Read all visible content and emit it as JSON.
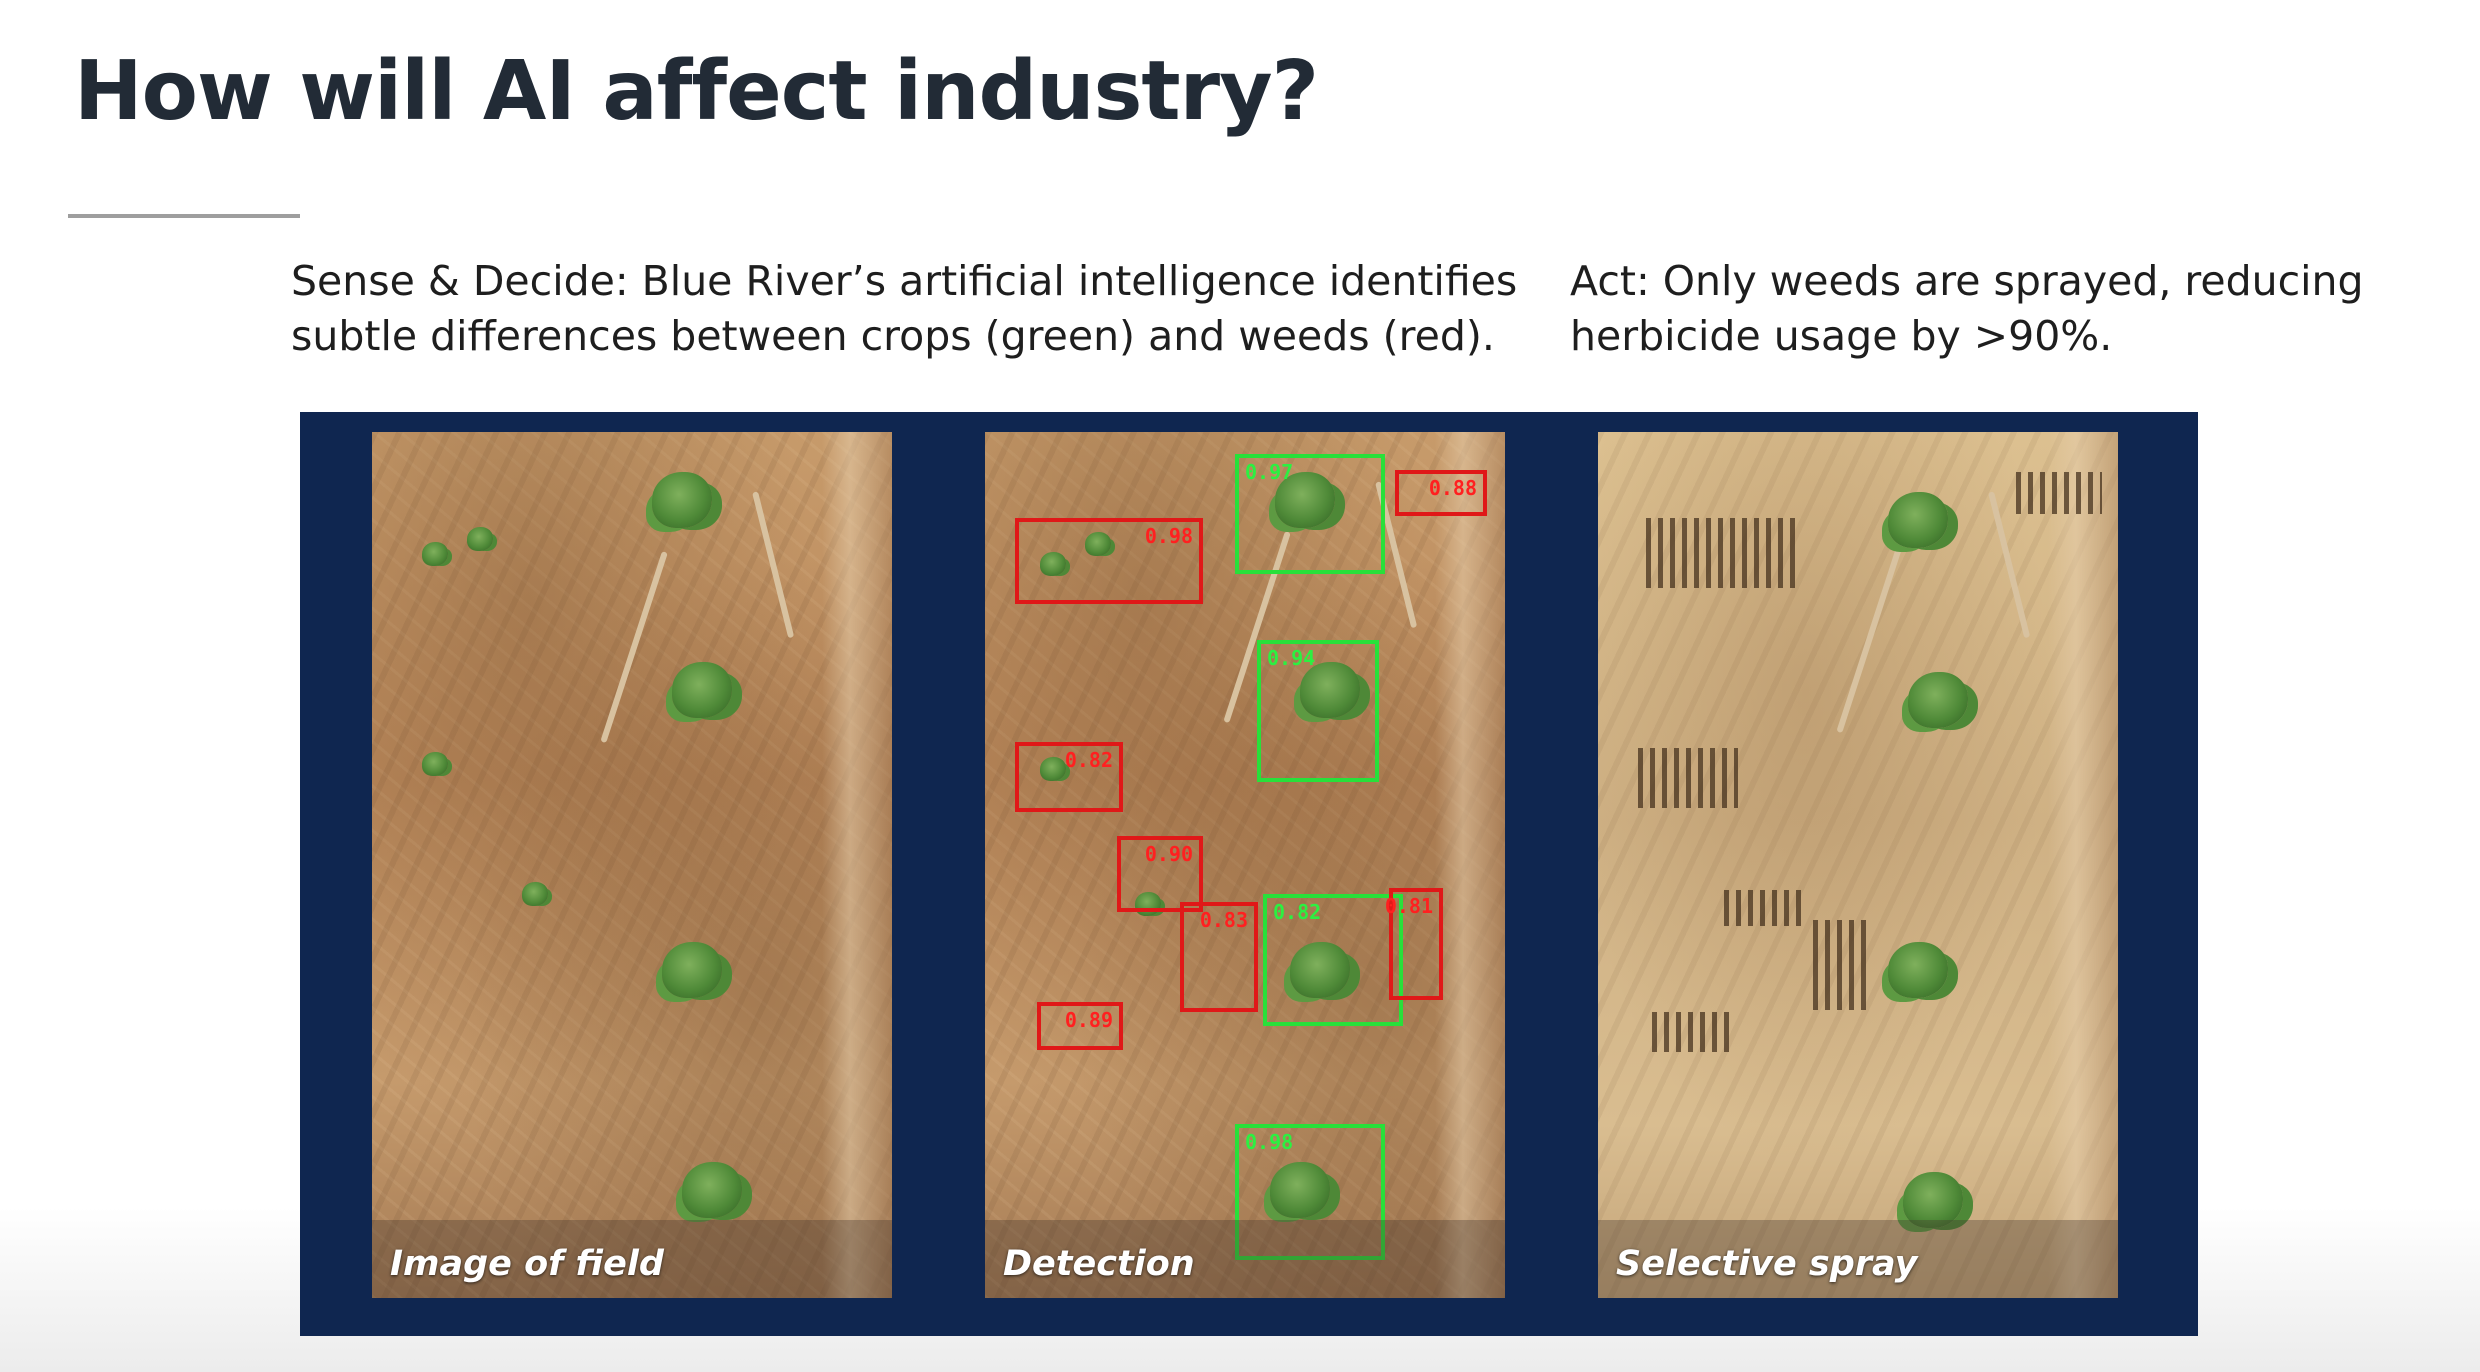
{
  "slide": {
    "title": "How will AI affect industry?",
    "caption_left": "Sense & Decide: Blue River’s artificial intelligence identifies\nsubtle differences between crops (green) and weeds (red).",
    "caption_right": "Act: Only weeds are sprayed, reducing\nherbicide usage by >90%."
  },
  "panels": [
    {
      "label": "Image of field"
    },
    {
      "label": "Detection"
    },
    {
      "label": "Selective spray"
    }
  ],
  "detections": [
    {
      "class": "crop",
      "score": "0.97"
    },
    {
      "class": "weed",
      "score": "0.88"
    },
    {
      "class": "weed",
      "score": "0.98"
    },
    {
      "class": "crop",
      "score": "0.94"
    },
    {
      "class": "weed",
      "score": "0.82"
    },
    {
      "class": "weed",
      "score": "0.90"
    },
    {
      "class": "weed",
      "score": "0.83"
    },
    {
      "class": "crop",
      "score": "0.82"
    },
    {
      "class": "weed",
      "score": "0.81"
    },
    {
      "class": "weed",
      "score": "0.89"
    },
    {
      "class": "crop",
      "score": "0.98"
    }
  ],
  "colors": {
    "crop_box": "#28e03a",
    "weed_box": "#e01818",
    "frame": "#0f2650",
    "title": "#222b36"
  }
}
